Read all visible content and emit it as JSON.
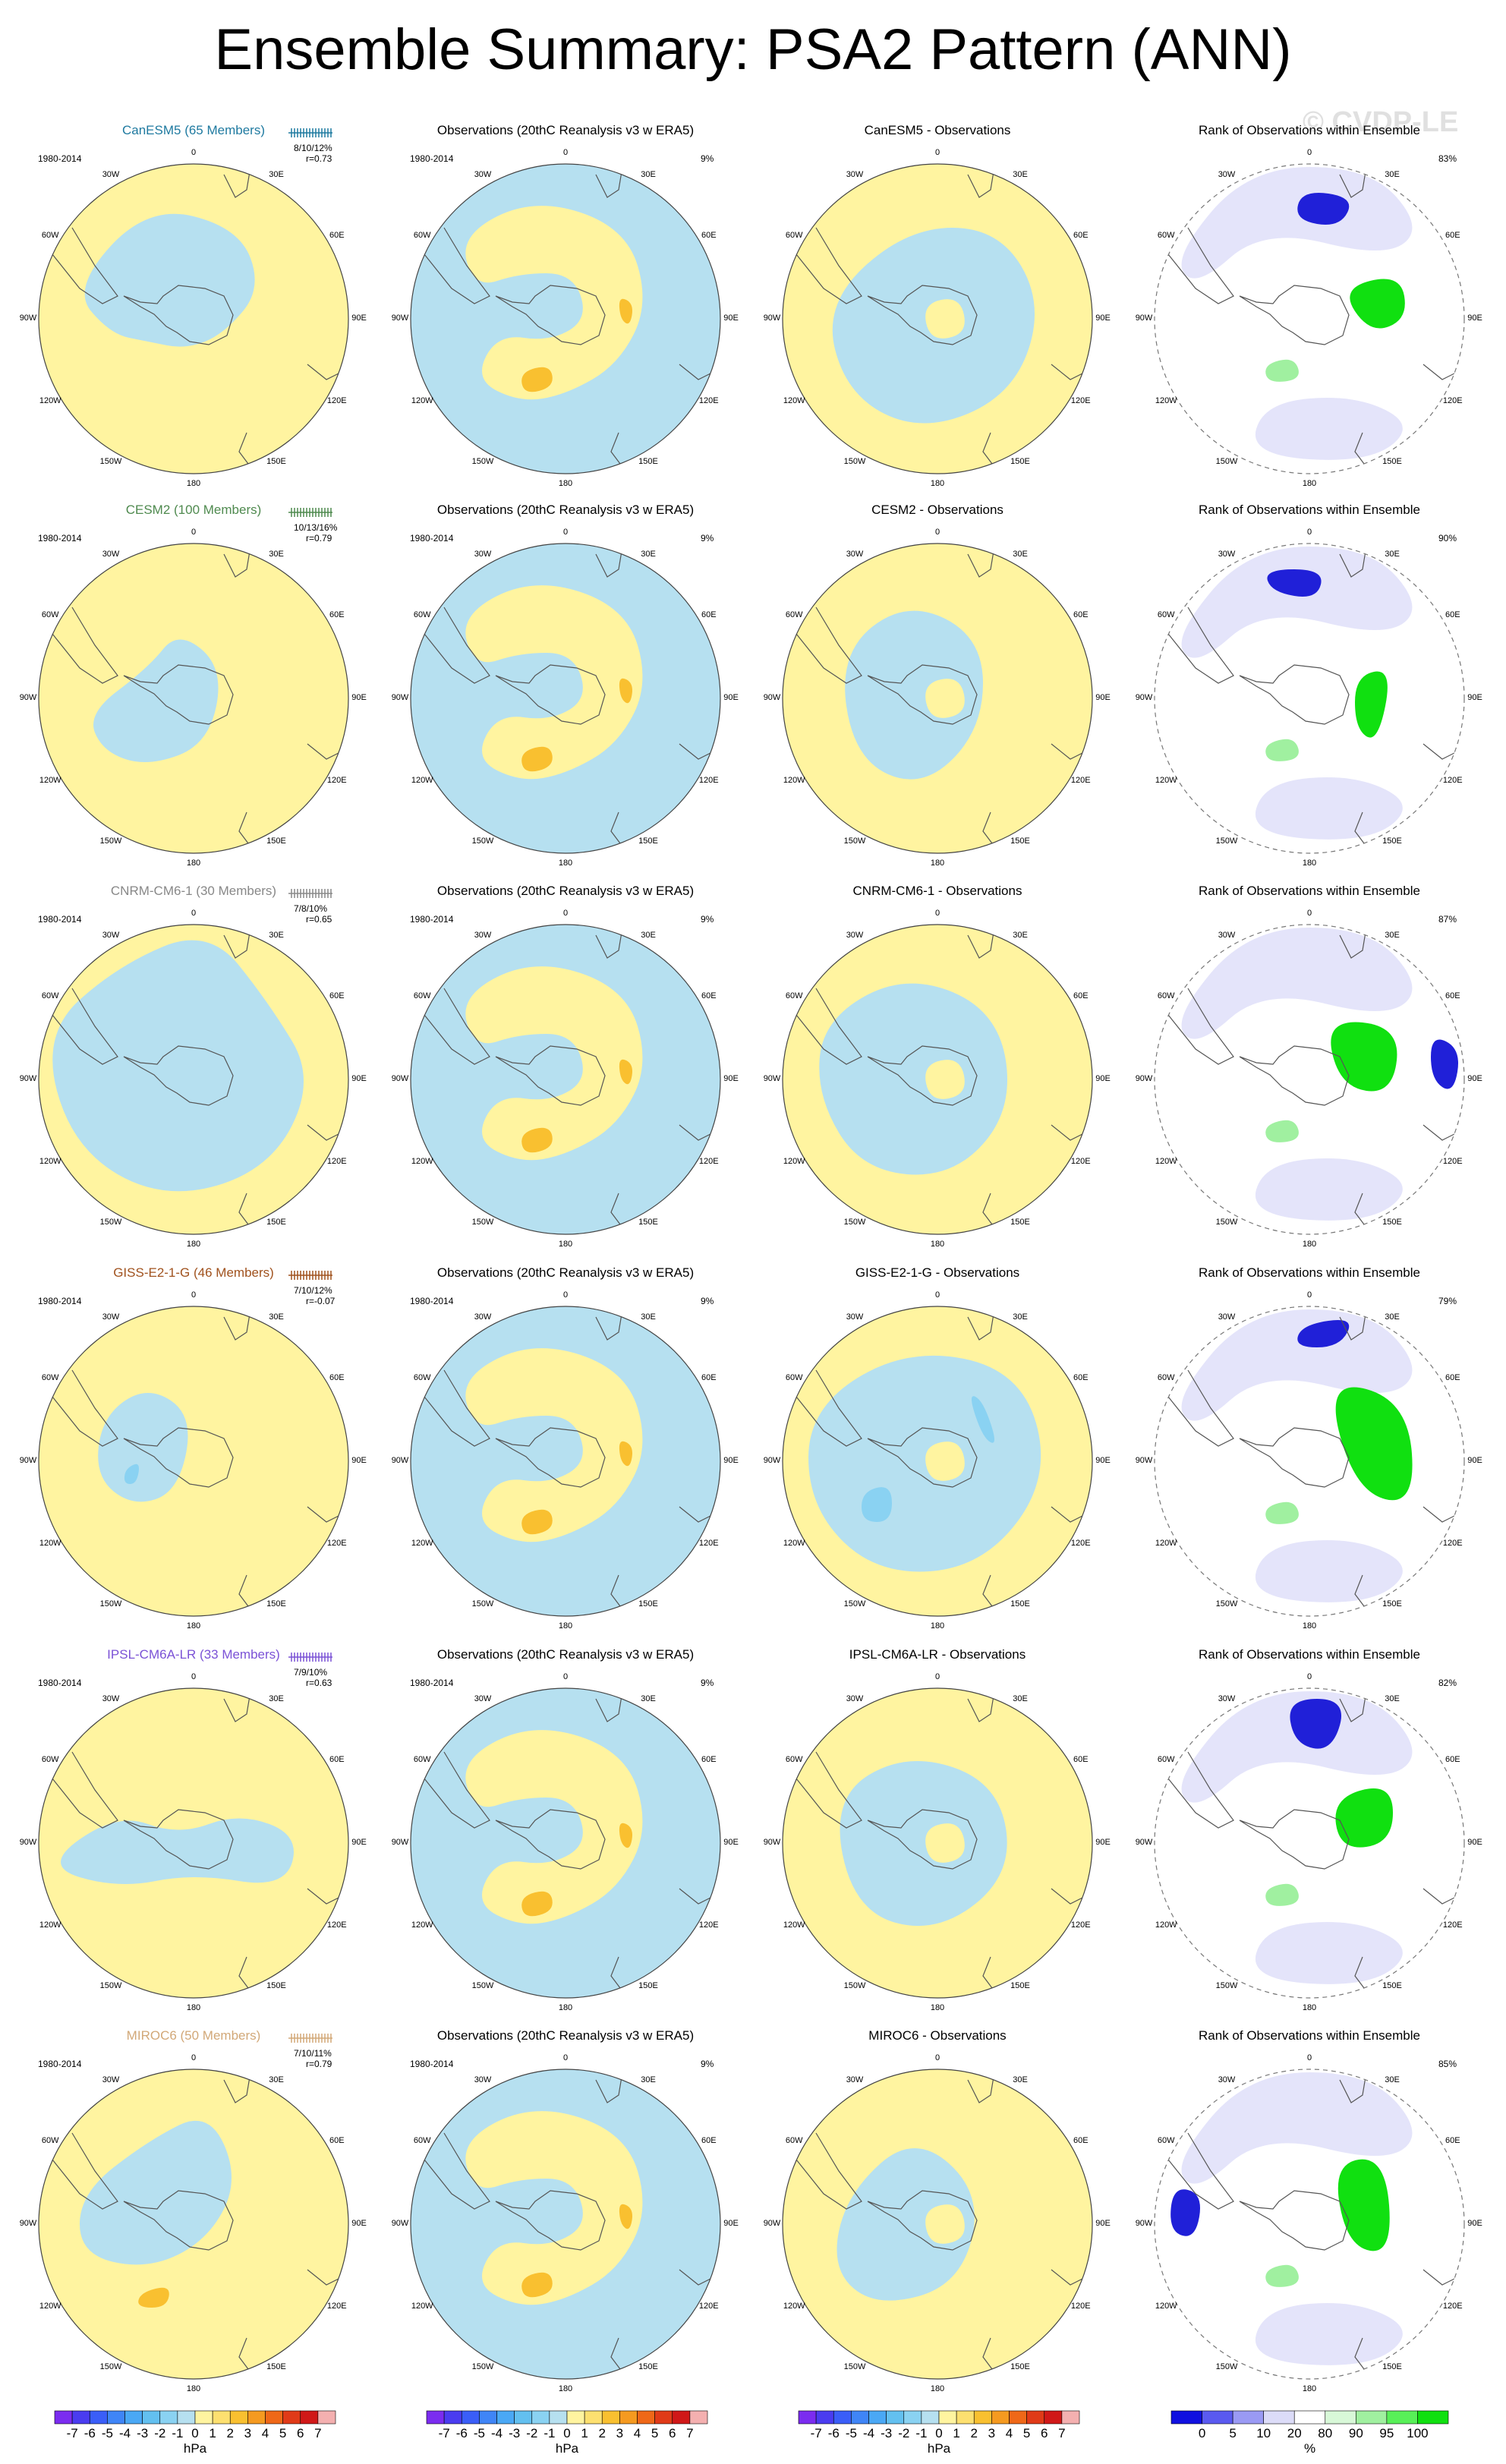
{
  "title": "Ensemble Summary: PSA2 Pattern (ANN)",
  "watermark": "© CVDP-LE",
  "period": "1980-2014",
  "obs_title": "Observations (20thC Reanalysis v3 w ERA5)",
  "obs_percent": "9%",
  "rank_title": "Rank of Observations within Ensemble",
  "lon_labels": [
    "0",
    "30E",
    "60E",
    "90E",
    "120E",
    "150E",
    "180",
    "150W",
    "120W",
    "90W",
    "60W",
    "30W"
  ],
  "rows": [
    {
      "model": "CanESM5 (65 Members)",
      "diff_title": "CanESM5 - Observations",
      "color": "#1f7aa0",
      "stats": "8/10/12%",
      "corr": "r=0.73",
      "rank_pct": "83%"
    },
    {
      "model": "CESM2 (100 Members)",
      "diff_title": "CESM2 - Observations",
      "color": "#4f8a4f",
      "stats": "10/13/16%",
      "corr": "r=0.79",
      "rank_pct": "90%"
    },
    {
      "model": "CNRM-CM6-1 (30 Members)",
      "diff_title": "CNRM-CM6-1 - Observations",
      "color": "#888888",
      "stats": "7/8/10%",
      "corr": "r=0.65",
      "rank_pct": "87%"
    },
    {
      "model": "GISS-E2-1-G (46 Members)",
      "diff_title": "GISS-E2-1-G - Observations",
      "color": "#a0521e",
      "stats": "7/10/12%",
      "corr": "r=-0.07",
      "rank_pct": "79%"
    },
    {
      "model": "IPSL-CM6A-LR (33 Members)",
      "diff_title": "IPSL-CM6A-LR - Observations",
      "color": "#7b52d6",
      "stats": "7/9/10%",
      "corr": "r=0.63",
      "rank_pct": "82%"
    },
    {
      "model": "MIROC6 (50 Members)",
      "diff_title": "MIROC6 - Observations",
      "color": "#d2a878",
      "stats": "7/10/11%",
      "corr": "r=0.79",
      "rank_pct": "85%"
    }
  ],
  "colorbar_hpa": {
    "labels": [
      "-7",
      "-6",
      "-5",
      "-4",
      "-3",
      "-2",
      "-1",
      "0",
      "1",
      "2",
      "3",
      "4",
      "5",
      "6",
      "7"
    ],
    "colors": [
      "#7b2cf0",
      "#4a3cf0",
      "#3a5ef8",
      "#3f85f7",
      "#4aa8f5",
      "#63c0f0",
      "#8ad2f2",
      "#b6e0f0",
      "#fff4a0",
      "#fde070",
      "#f9c030",
      "#f59a20",
      "#ef6818",
      "#e03a18",
      "#d01818",
      "#f4b0b0"
    ],
    "unit": "hPa"
  },
  "colorbar_rank": {
    "labels": [
      "0",
      "5",
      "10",
      "20",
      "80",
      "90",
      "95",
      "100"
    ],
    "colors": [
      "#1010e0",
      "#5a5af0",
      "#9a9af4",
      "#dcdcf8",
      "#ffffff",
      "#d8f8d8",
      "#a0f0a0",
      "#58f058",
      "#10e010"
    ],
    "unit": "%"
  }
}
